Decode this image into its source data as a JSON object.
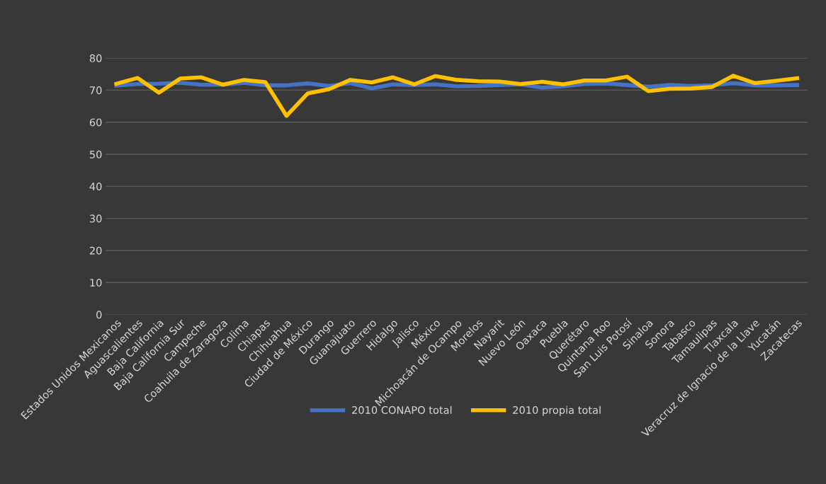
{
  "chart_data": {
    "type": "line",
    "categories": [
      "Estados Unidos Mexicanos",
      "Aguascalientes",
      "Baja California",
      "Baja California Sur",
      "Campeche",
      "Coahuila de Zaragoza",
      "Colima",
      "Chiapas",
      "Chihuahua",
      "Ciudad de México",
      "Durango",
      "Guanajuato",
      "Guerrero",
      "Hidalgo",
      "Jalisco",
      "México",
      "Michoacán de Ocampo",
      "Morelos",
      "Nayarit",
      "Nuevo León",
      "Oaxaca",
      "Puebla",
      "Querétaro",
      "Quintana Roo",
      "San Luis Potosí",
      "Sinaloa",
      "Sonora",
      "Tabasco",
      "Tamaulipas",
      "Tlaxcala",
      "Veracruz de Ignacio de la Llave",
      "Yucatán",
      "Zacatecas"
    ],
    "series": [
      {
        "name": "2010 CONAPO total",
        "color": "#4472c4",
        "values": [
          71.4,
          71.9,
          72.0,
          72.3,
          71.7,
          71.7,
          72.3,
          71.5,
          71.5,
          72.1,
          71.3,
          72.2,
          70.6,
          71.8,
          71.6,
          71.8,
          71.2,
          71.3,
          71.6,
          71.8,
          70.8,
          71.2,
          71.9,
          72.1,
          71.6,
          71.1,
          71.6,
          71.3,
          71.5,
          72.2,
          71.5,
          71.5,
          71.6
        ]
      },
      {
        "name": "2010 propia total",
        "color": "#ffc000",
        "values": [
          72.0,
          73.8,
          69.2,
          73.6,
          74.0,
          71.7,
          73.2,
          72.5,
          62.0,
          69.0,
          70.3,
          73.2,
          72.4,
          74.0,
          71.8,
          74.4,
          73.2,
          72.8,
          72.7,
          71.9,
          72.6,
          71.8,
          73.0,
          73.0,
          74.2,
          69.7,
          70.4,
          70.5,
          71.0,
          74.5,
          72.2,
          72.9,
          73.7
        ]
      }
    ],
    "ylim": [
      0,
      80
    ],
    "yticks": [
      0,
      10,
      20,
      30,
      40,
      50,
      60,
      70,
      80
    ],
    "grid": "y",
    "legend": "bottom",
    "marker": "none",
    "line_style": "solid"
  }
}
